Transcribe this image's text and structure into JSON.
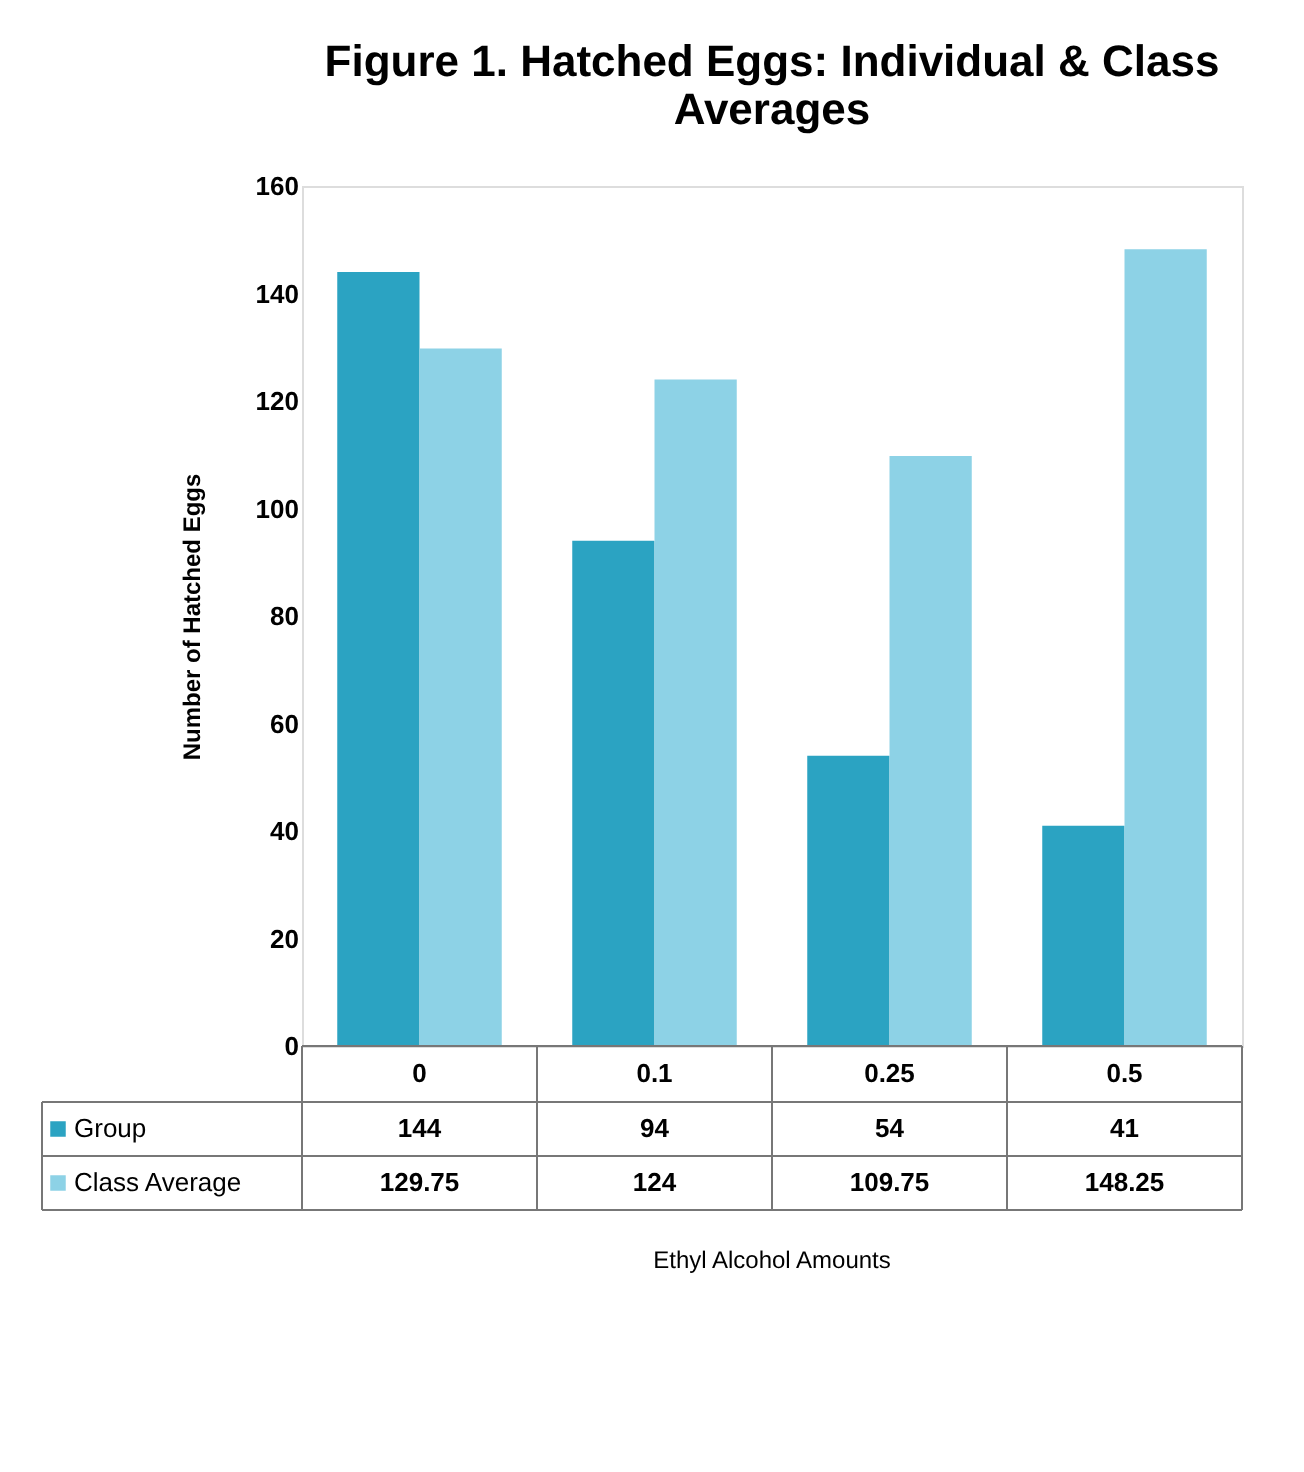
{
  "chart_data": {
    "type": "bar",
    "title": "Figure 1. Hatched Eggs:  Individual & Class Averages",
    "annotations": [
      "Ethyl Alcohol Amounts"
    ],
    "ylabel": "Number of Hatched Eggs",
    "categories": [
      "0",
      "0.1",
      "0.25",
      "0.5"
    ],
    "series": [
      {
        "name": "Group",
        "color": "#2ba3c2",
        "values": [
          144,
          94,
          54,
          41
        ]
      },
      {
        "name": "Class Average",
        "color": "#8dd2e6",
        "values": [
          129.75,
          124,
          109.75,
          148.25
        ]
      }
    ],
    "ylim": [
      0,
      160
    ],
    "yticks": [
      0,
      20,
      40,
      60,
      80,
      100,
      120,
      140,
      160
    ],
    "grid": false,
    "legend": "bottom",
    "data_labels": true
  }
}
